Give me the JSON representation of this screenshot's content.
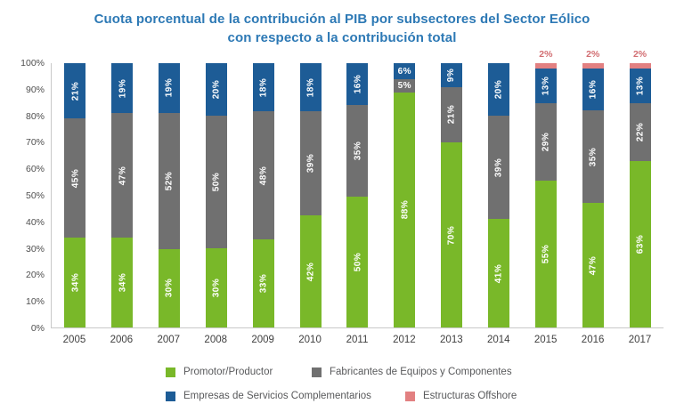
{
  "title": {
    "line1": "Cuota porcentual de la contribución al PIB por subsectores del Sector Eólico",
    "line2": "con respecto a la contribución total"
  },
  "colors": {
    "title_text": "#2d79b5",
    "axis_line": "#c9c9c9",
    "tick_text": "#4f4f4f",
    "segment_label_text": "#ffffff",
    "offshore_label_text": "#d26e72"
  },
  "chart_data": {
    "type": "bar",
    "stacked": true,
    "title": "Cuota porcentual de la contribución al PIB por subsectores del Sector Eólico con respecto a la contribución total",
    "categories": [
      "2005",
      "2006",
      "2007",
      "2008",
      "2009",
      "2010",
      "2011",
      "2012",
      "2013",
      "2014",
      "2015",
      "2016",
      "2017"
    ],
    "series": [
      {
        "name": "Promotor/Productor",
        "color": "#79b829",
        "values": [
          34,
          34,
          30,
          30,
          33,
          42,
          50,
          88,
          70,
          41,
          55,
          47,
          63
        ]
      },
      {
        "name": "Fabricantes de Equipos y Componentes",
        "color": "#707070",
        "values": [
          45,
          47,
          52,
          50,
          48,
          39,
          35,
          5,
          21,
          39,
          29,
          35,
          22
        ]
      },
      {
        "name": "Empresas de Servicios Complementarios",
        "color": "#1d5c96",
        "values": [
          21,
          19,
          19,
          20,
          18,
          18,
          16,
          6,
          9,
          20,
          13,
          16,
          13
        ]
      },
      {
        "name": "Estructuras Offshore",
        "color": "#e28081",
        "values": [
          0,
          0,
          0,
          0,
          0,
          0,
          0,
          0,
          0,
          0,
          2,
          2,
          2
        ]
      }
    ],
    "value_suffix": "%",
    "xlabel": "",
    "ylabel": "",
    "ylim": [
      0,
      100
    ],
    "yticks": [
      "100%",
      "90%",
      "80%",
      "70%",
      "60%",
      "50%",
      "40%",
      "30%",
      "20%",
      "10%",
      "0%"
    ],
    "grid": false,
    "legend_position": "bottom"
  },
  "legend": {
    "items": [
      {
        "label": "Promotor/Productor"
      },
      {
        "label": "Fabricantes de Equipos y Componentes"
      },
      {
        "label": "Empresas de Servicios Complementarios"
      },
      {
        "label": "Estructuras Offshore"
      }
    ]
  }
}
